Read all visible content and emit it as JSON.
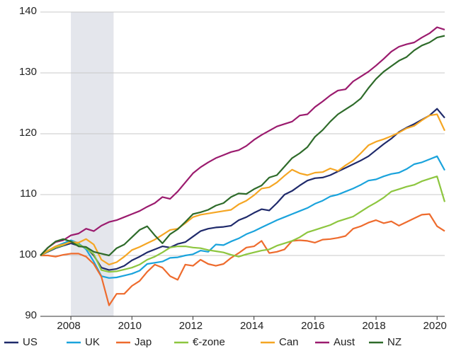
{
  "chart_data": {
    "type": "line",
    "x": [
      2007,
      2007.25,
      2007.5,
      2007.75,
      2008,
      2008.25,
      2008.5,
      2008.75,
      2009,
      2009.25,
      2009.5,
      2009.75,
      2010,
      2010.25,
      2010.5,
      2010.75,
      2011,
      2011.25,
      2011.5,
      2011.75,
      2012,
      2012.25,
      2012.5,
      2012.75,
      2013,
      2013.25,
      2013.5,
      2013.75,
      2014,
      2014.25,
      2014.5,
      2014.75,
      2015,
      2015.25,
      2015.5,
      2015.75,
      2016,
      2016.25,
      2016.5,
      2016.75,
      2017,
      2017.25,
      2017.5,
      2017.75,
      2018,
      2018.25,
      2018.5,
      2018.75,
      2019,
      2019.25,
      2019.5,
      2019.75,
      2020,
      2020.25
    ],
    "series": [
      {
        "name": "US",
        "color": "#1f2a6b",
        "values": [
          100,
          100.6,
          101.2,
          101.6,
          102,
          101.6,
          101.3,
          100,
          98,
          97.6,
          97.8,
          98.3,
          99.2,
          99.8,
          100.5,
          101,
          101.5,
          101.3,
          101.9,
          102.2,
          103.1,
          104,
          104.4,
          104.6,
          104.7,
          104.9,
          105.8,
          106.3,
          107,
          107.6,
          107.4,
          108.6,
          110,
          110.6,
          111.5,
          112.3,
          112.7,
          112.8,
          113.2,
          113.8,
          114.4,
          115,
          115.6,
          116.3,
          117.3,
          118.3,
          119.2,
          120.3,
          121,
          121.6,
          122.3,
          123,
          124.1,
          122.6
        ]
      },
      {
        "name": "UK",
        "color": "#1aa3dc",
        "values": [
          100,
          100.8,
          101.5,
          102,
          102.5,
          102,
          101,
          99,
          96.6,
          96.3,
          96.4,
          96.7,
          97,
          97.5,
          98.6,
          98.8,
          99,
          99.6,
          99.7,
          100,
          100.2,
          100.8,
          100.6,
          101.8,
          101.7,
          102.3,
          102.8,
          103.5,
          104,
          104.6,
          105.2,
          105.8,
          106.3,
          106.8,
          107.3,
          107.8,
          108.5,
          109,
          109.7,
          110,
          110.5,
          111,
          111.6,
          112.3,
          112.5,
          113,
          113.4,
          113.6,
          114.2,
          115,
          115.3,
          115.8,
          116.3,
          114
        ]
      },
      {
        "name": "Jap",
        "color": "#ee6b2d",
        "values": [
          100,
          100,
          99.8,
          100.1,
          100.3,
          100.3,
          99.8,
          98.6,
          96.5,
          91.8,
          93.7,
          93.7,
          95,
          95.8,
          97.3,
          98.5,
          98,
          96.6,
          96,
          98.5,
          98.3,
          99.3,
          98.6,
          98.3,
          98.6,
          99.6,
          100.4,
          101.3,
          101.5,
          102.4,
          100.4,
          100.6,
          101,
          102.4,
          102.5,
          102.4,
          102.1,
          102.6,
          102.7,
          102.9,
          103.2,
          104.4,
          104.8,
          105.4,
          105.8,
          105.3,
          105.6,
          104.9,
          105.5,
          106.1,
          106.7,
          106.8,
          104.8,
          104
        ]
      },
      {
        "name": "€-zone",
        "color": "#8dc63f",
        "values": [
          100,
          100.7,
          101.3,
          101.7,
          102.3,
          101.8,
          101.2,
          100.2,
          97.6,
          97.3,
          97.4,
          97.7,
          98,
          98.5,
          99.3,
          99.8,
          100.5,
          101.3,
          101.5,
          101.5,
          101.3,
          101.2,
          100.9,
          100.7,
          100.5,
          100.1,
          99.8,
          100.2,
          100.5,
          100.8,
          101,
          101.6,
          102,
          102.4,
          103,
          103.8,
          104.2,
          104.6,
          105,
          105.6,
          106,
          106.4,
          107.2,
          108,
          108.7,
          109.5,
          110.5,
          110.9,
          111.3,
          111.6,
          112.2,
          112.6,
          113,
          108.8
        ]
      },
      {
        "name": "Can",
        "color": "#f5a623",
        "values": [
          100,
          100.8,
          101.5,
          101.8,
          102.2,
          102.1,
          102.7,
          101.8,
          99.3,
          98.5,
          98.9,
          99.8,
          100.9,
          101.4,
          102,
          102.6,
          103.4,
          104.2,
          104.4,
          105.3,
          106.3,
          106.7,
          106.9,
          107.1,
          107.3,
          107.5,
          108.4,
          109,
          109.9,
          111,
          111.2,
          112,
          113.1,
          114.1,
          113.5,
          113.2,
          113.6,
          113.7,
          114.3,
          113.9,
          114.8,
          115.6,
          116.8,
          118.1,
          118.7,
          119.1,
          119.6,
          120.2,
          120.9,
          121.3,
          122.2,
          123,
          123.2,
          120.5
        ]
      },
      {
        "name": "Aust",
        "color": "#9b1b6e",
        "values": [
          100,
          101.3,
          102.2,
          102.5,
          103.3,
          103.6,
          104.4,
          104,
          104.9,
          105.5,
          105.8,
          106.3,
          106.8,
          107.3,
          108,
          108.6,
          109.6,
          109.3,
          110.5,
          112,
          113.5,
          114.5,
          115.3,
          116,
          116.5,
          117,
          117.3,
          118,
          119,
          119.8,
          120.5,
          121.2,
          121.6,
          122,
          123,
          123.2,
          124.4,
          125.3,
          126.3,
          127.1,
          127.3,
          128.6,
          129.4,
          130.2,
          131.2,
          132.3,
          133.5,
          134.3,
          134.7,
          135,
          135.8,
          136.5,
          137.5,
          137.1
        ]
      },
      {
        "name": "NZ",
        "color": "#2e6b2a",
        "values": [
          100,
          101.3,
          102.3,
          102.7,
          102.3,
          101.5,
          101.4,
          100.6,
          100.3,
          100,
          101.2,
          101.8,
          103,
          104.2,
          104.8,
          103.3,
          102,
          103.5,
          104.3,
          105.5,
          106.8,
          107.1,
          107.5,
          108.2,
          108.6,
          109.6,
          110.2,
          110.1,
          110.9,
          111.5,
          112.8,
          113.2,
          114.6,
          116,
          116.8,
          117.8,
          119.5,
          120.6,
          122,
          123.2,
          124,
          124.8,
          125.8,
          127.5,
          129,
          130.2,
          131.1,
          132,
          132.6,
          133.7,
          134.5,
          135,
          135.8,
          136.1
        ]
      }
    ],
    "shaded_x": [
      2008,
      2009.4
    ],
    "xlim": [
      2007,
      2020.25
    ],
    "xticks": [
      2008,
      2010,
      2012,
      2014,
      2016,
      2018,
      2020
    ],
    "ylim": [
      90,
      140
    ],
    "yticks": [
      90,
      100,
      110,
      120,
      130,
      140
    ],
    "grid": true
  }
}
